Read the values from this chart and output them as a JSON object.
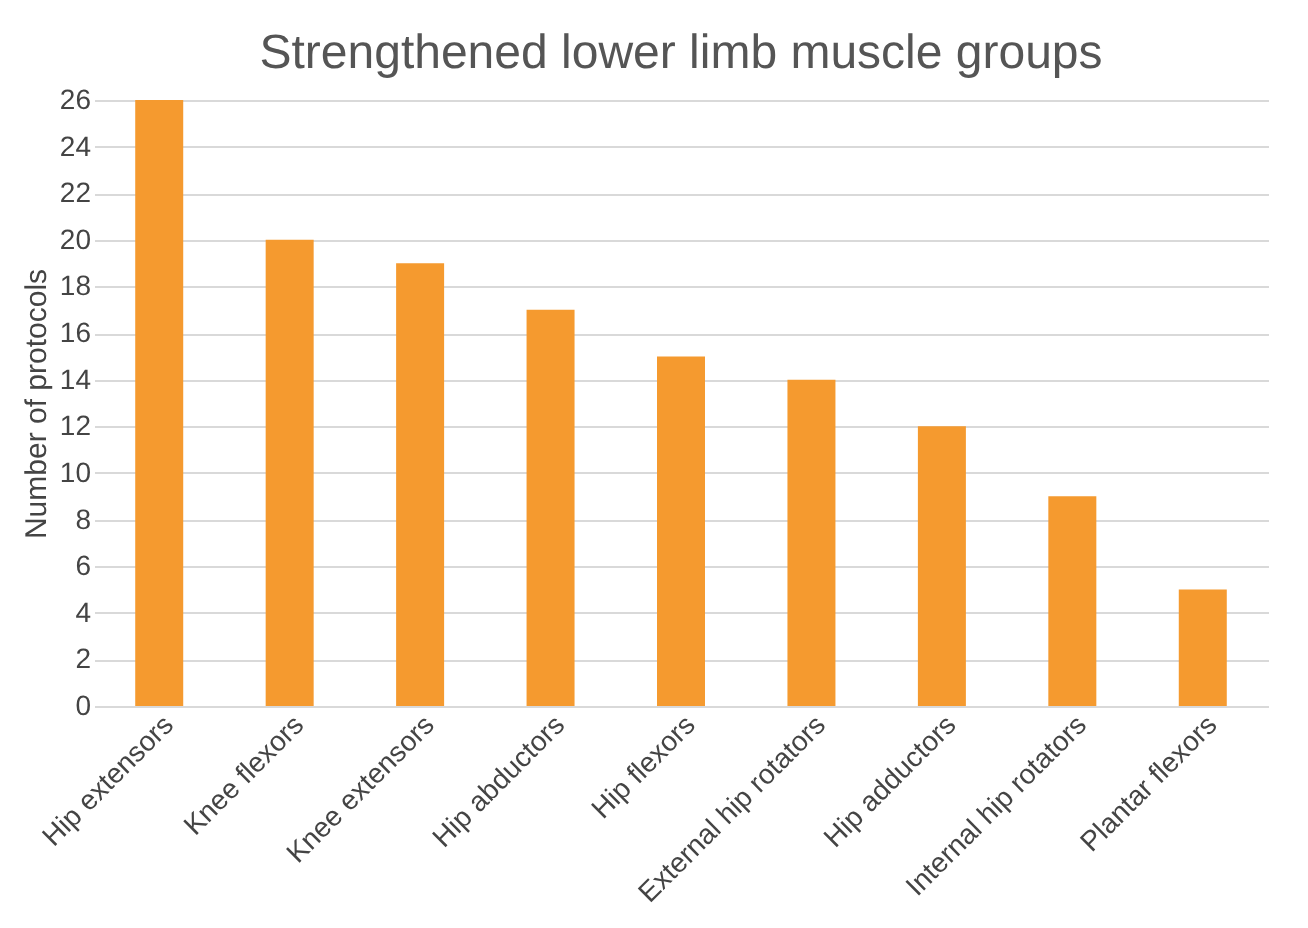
{
  "chart_data": {
    "type": "bar",
    "title": "Strengthened lower limb muscle groups",
    "ylabel": "Number of protocols",
    "categories": [
      "Hip extensors",
      "Knee flexors",
      "Knee extensors",
      "Hip abductors",
      "Hip flexors",
      "External hip rotators",
      "Hip adductors",
      "Internal hip rotators",
      "Plantar flexors"
    ],
    "values": [
      26,
      20,
      19,
      17,
      15,
      14,
      12,
      9,
      5
    ],
    "color": "#f59a2f",
    "ylim": [
      0,
      26
    ],
    "yticks": [
      0,
      2,
      4,
      6,
      8,
      10,
      12,
      14,
      16,
      18,
      20,
      22,
      24,
      26
    ],
    "grid": "y"
  }
}
